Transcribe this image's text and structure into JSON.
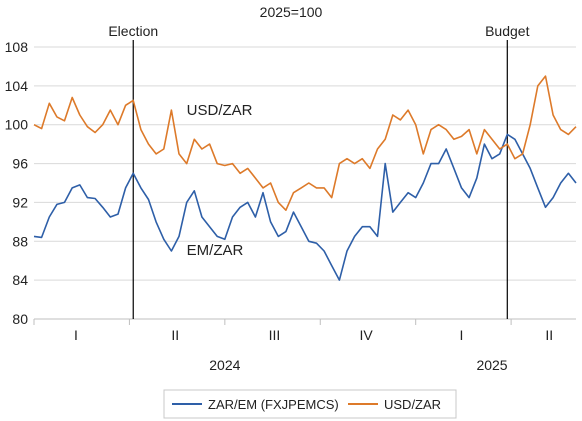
{
  "chart_data": {
    "type": "line",
    "title": "2025=100",
    "xlabel": "",
    "ylabel": "",
    "ylim": [
      80,
      108
    ],
    "yticks": [
      80,
      84,
      88,
      92,
      96,
      100,
      104,
      108
    ],
    "grid": "horizontal",
    "legend_position": "bottom",
    "colors": {
      "ZAR/EM (FXJPEMCS)": "#2e5fa8",
      "USD/ZAR": "#dd7a2a"
    },
    "quarter_labels": [
      {
        "label": "I",
        "x": 2024.11
      },
      {
        "label": "II",
        "x": 2024.37
      },
      {
        "label": "III",
        "x": 2024.63
      },
      {
        "label": "IV",
        "x": 2024.87
      },
      {
        "label": "I",
        "x": 2025.12
      },
      {
        "label": "II",
        "x": 2025.35
      }
    ],
    "year_labels": [
      {
        "label": "2024",
        "x": 2024.5
      },
      {
        "label": "2025",
        "x": 2025.2
      }
    ],
    "quarter_boundaries": [
      2024.0,
      2024.25,
      2024.5,
      2024.75,
      2025.0,
      2025.25
    ],
    "events": [
      {
        "label": "Election",
        "x": 2024.26
      },
      {
        "label": "Budget",
        "x": 2025.24
      }
    ],
    "inline_labels": [
      {
        "series": "USD/ZAR",
        "text": "USD/ZAR",
        "x": 2024.4,
        "y": 101
      },
      {
        "series": "ZAR/EM (FXJPEMCS)",
        "text": "EM/ZAR",
        "x": 2024.4,
        "y": 86.6
      }
    ],
    "xlim": [
      2024.0,
      2025.42
    ],
    "series": [
      {
        "name": "ZAR/EM (FXJPEMCS)",
        "x": [
          2024.0,
          2024.02,
          2024.04,
          2024.06,
          2024.08,
          2024.1,
          2024.12,
          2024.14,
          2024.16,
          2024.18,
          2024.2,
          2024.22,
          2024.24,
          2024.26,
          2024.28,
          2024.3,
          2024.32,
          2024.34,
          2024.36,
          2024.38,
          2024.4,
          2024.42,
          2024.44,
          2024.46,
          2024.48,
          2024.5,
          2024.52,
          2024.54,
          2024.56,
          2024.58,
          2024.6,
          2024.62,
          2024.64,
          2024.66,
          2024.68,
          2024.7,
          2024.72,
          2024.74,
          2024.76,
          2024.78,
          2024.8,
          2024.82,
          2024.84,
          2024.86,
          2024.88,
          2024.9,
          2024.92,
          2024.94,
          2024.96,
          2024.98,
          2025.0,
          2025.02,
          2025.04,
          2025.06,
          2025.08,
          2025.1,
          2025.12,
          2025.14,
          2025.16,
          2025.18,
          2025.2,
          2025.22,
          2025.24,
          2025.26,
          2025.28,
          2025.3,
          2025.32,
          2025.34,
          2025.36,
          2025.38,
          2025.4,
          2025.42
        ],
        "y": [
          88.5,
          88.4,
          90.5,
          91.8,
          92.0,
          93.5,
          93.8,
          92.5,
          92.4,
          91.5,
          90.5,
          90.8,
          93.5,
          95.0,
          93.5,
          92.3,
          90.0,
          88.2,
          87.0,
          88.5,
          92.0,
          93.2,
          90.5,
          89.5,
          88.5,
          88.2,
          90.5,
          91.5,
          92.0,
          90.5,
          93.0,
          90.0,
          88.5,
          89.0,
          91.0,
          89.5,
          88.0,
          87.8,
          87.0,
          85.5,
          84.0,
          87.0,
          88.5,
          89.5,
          89.5,
          88.5,
          96.0,
          91.0,
          92.0,
          93.0,
          92.5,
          94.0,
          96.0,
          96.0,
          97.5,
          95.5,
          93.5,
          92.5,
          94.5,
          98.0,
          96.5,
          97.0,
          99.0,
          98.5,
          97.0,
          95.5,
          93.5,
          91.5,
          92.5,
          94.0,
          95.0,
          94.0
        ]
      },
      {
        "name": "USD/ZAR",
        "x": [
          2024.0,
          2024.02,
          2024.04,
          2024.06,
          2024.08,
          2024.1,
          2024.12,
          2024.14,
          2024.16,
          2024.18,
          2024.2,
          2024.22,
          2024.24,
          2024.26,
          2024.28,
          2024.3,
          2024.32,
          2024.34,
          2024.36,
          2024.38,
          2024.4,
          2024.42,
          2024.44,
          2024.46,
          2024.48,
          2024.5,
          2024.52,
          2024.54,
          2024.56,
          2024.58,
          2024.6,
          2024.62,
          2024.64,
          2024.66,
          2024.68,
          2024.7,
          2024.72,
          2024.74,
          2024.76,
          2024.78,
          2024.8,
          2024.82,
          2024.84,
          2024.86,
          2024.88,
          2024.9,
          2024.92,
          2024.94,
          2024.96,
          2024.98,
          2025.0,
          2025.02,
          2025.04,
          2025.06,
          2025.08,
          2025.1,
          2025.12,
          2025.14,
          2025.16,
          2025.18,
          2025.2,
          2025.22,
          2025.24,
          2025.26,
          2025.28,
          2025.3,
          2025.32,
          2025.34,
          2025.36,
          2025.38,
          2025.4,
          2025.42
        ],
        "y": [
          100.0,
          99.6,
          102.2,
          100.8,
          100.4,
          102.8,
          101.0,
          99.8,
          99.2,
          100.0,
          101.5,
          100.0,
          102.0,
          102.5,
          99.5,
          98.0,
          97.0,
          97.5,
          101.5,
          97.0,
          96.0,
          98.5,
          97.5,
          98.0,
          96.0,
          95.8,
          96.0,
          95.0,
          95.5,
          94.5,
          93.5,
          94.0,
          92.0,
          91.2,
          93.0,
          93.5,
          94.0,
          93.5,
          93.5,
          92.5,
          96.0,
          96.5,
          96.0,
          96.5,
          95.5,
          97.5,
          98.5,
          101.0,
          100.5,
          101.5,
          100.0,
          97.0,
          99.5,
          100.0,
          99.5,
          98.5,
          98.8,
          99.5,
          97.0,
          99.5,
          98.5,
          97.5,
          98.0,
          96.5,
          97.0,
          100.0,
          104.0,
          105.0,
          101.0,
          99.5,
          99.0,
          99.8
        ]
      }
    ]
  },
  "legend": {
    "items": [
      "ZAR/EM (FXJPEMCS)",
      "USD/ZAR"
    ]
  }
}
